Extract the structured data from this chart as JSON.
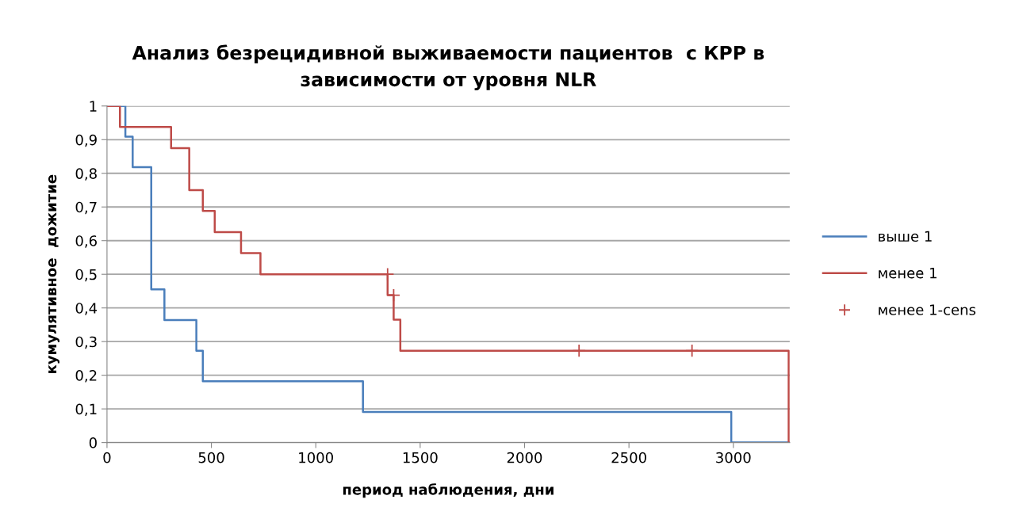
{
  "chart_data": {
    "type": "step",
    "title": "Анализ безрецидивной выживаемости пациентов  с КРР в\nзависимости от уровня NLR",
    "xlabel": "период наблюдения, дни",
    "ylabel": "кумулятивное  дожитие",
    "xlim": [
      0,
      3270
    ],
    "xticks": [
      0,
      500,
      1000,
      1500,
      2000,
      2500,
      3000
    ],
    "ylim": [
      0,
      1
    ],
    "yticks": [
      0,
      {
        "value": 0.1,
        "label": "0,1"
      },
      {
        "value": 0.2,
        "label": "0,2"
      },
      {
        "value": 0.3,
        "label": "0,3"
      },
      {
        "value": 0.4,
        "label": "0,4"
      },
      {
        "value": 0.5,
        "label": "0,5"
      },
      {
        "value": 0.6,
        "label": "0,6"
      },
      {
        "value": 0.7,
        "label": "0,7"
      },
      {
        "value": 0.8,
        "label": "0,8"
      },
      {
        "value": 0.9,
        "label": "0,9"
      },
      1
    ],
    "grid": "y",
    "legend": "right",
    "series": [
      {
        "name": "выше 1",
        "color": "#4a7ebb",
        "x": [
          0,
          88,
          123,
          212,
          275,
          428,
          459,
          1226,
          2990,
          3265
        ],
        "values": [
          1,
          0.909,
          0.818,
          0.455,
          0.364,
          0.273,
          0.182,
          0.091,
          0,
          0
        ]
      },
      {
        "name": "менее 1",
        "color": "#be4b48",
        "x": [
          0,
          62,
          307,
          394,
          459,
          516,
          642,
          735,
          1344,
          1373,
          1405,
          3265
        ],
        "values": [
          1,
          0.938,
          0.875,
          0.75,
          0.688,
          0.625,
          0.563,
          0.5,
          0.438,
          0.365,
          0.273,
          0
        ]
      },
      {
        "name": "менее 1-cens",
        "color": "#be4b48",
        "type": "scatter",
        "marker": "cross",
        "x": [
          1344,
          1373,
          2261,
          2802
        ],
        "values": [
          0.5,
          0.438,
          0.273,
          0.273
        ]
      }
    ]
  }
}
